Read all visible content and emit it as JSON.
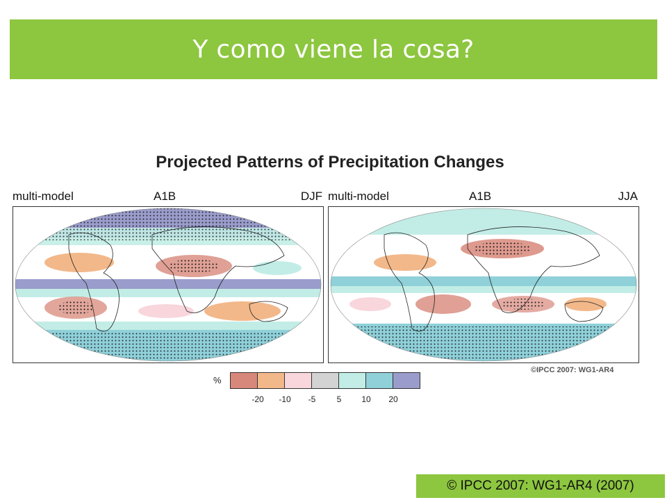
{
  "slide": {
    "title": "Y como viene la cosa?",
    "credit": "© IPCC 2007: WG1-AR4 (2007)",
    "accent_color": "#8dc63f"
  },
  "figure": {
    "title": "Projected Patterns of Precipitation Changes",
    "copyright": "©IPCC 2007: WG1-AR4",
    "panels": [
      {
        "left": "multi-model",
        "middle": "A1B",
        "right": "DJF"
      },
      {
        "left": "multi-model",
        "middle": "A1B",
        "right": "JJA"
      }
    ],
    "legend": {
      "unit": "%",
      "colors": [
        "#d8887a",
        "#f2b88a",
        "#f8d6dc",
        "#d3d3d3",
        "#c2ede6",
        "#8fd0d9",
        "#9a9ccb"
      ],
      "ticks": [
        "-20",
        "-10",
        "-5",
        "5",
        "10",
        "20"
      ]
    }
  }
}
